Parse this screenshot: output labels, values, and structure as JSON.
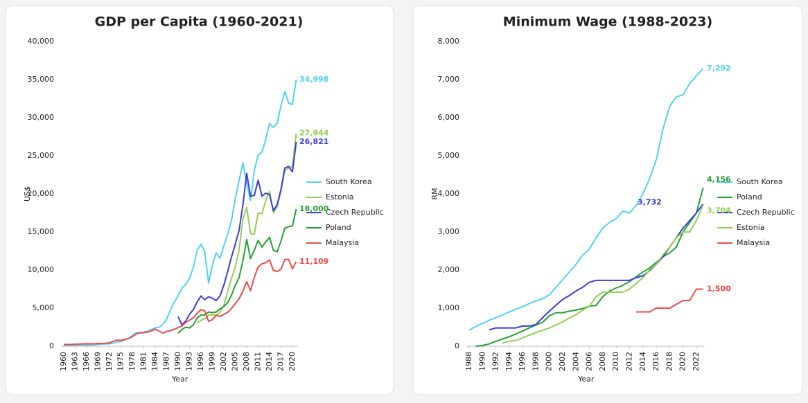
{
  "chart_data": [
    {
      "type": "line",
      "title": "GDP per Capita (1960-2021)",
      "x_label": "Year",
      "y_label": "US$",
      "x": [
        1960,
        1961,
        1962,
        1963,
        1964,
        1965,
        1966,
        1967,
        1968,
        1969,
        1970,
        1971,
        1972,
        1973,
        1974,
        1975,
        1976,
        1977,
        1978,
        1979,
        1980,
        1981,
        1982,
        1983,
        1984,
        1985,
        1986,
        1987,
        1988,
        1989,
        1990,
        1991,
        1992,
        1993,
        1994,
        1995,
        1996,
        1997,
        1998,
        1999,
        2000,
        2001,
        2002,
        2003,
        2004,
        2005,
        2006,
        2007,
        2008,
        2009,
        2010,
        2011,
        2012,
        2013,
        2014,
        2015,
        2016,
        2017,
        2018,
        2019,
        2020,
        2021
      ],
      "xlim": [
        1960,
        2021
      ],
      "xticks": [
        1960,
        1963,
        1966,
        1969,
        1972,
        1975,
        1978,
        1981,
        1984,
        1987,
        1990,
        1993,
        1996,
        1999,
        2002,
        2005,
        2008,
        2011,
        2014,
        2017,
        2020
      ],
      "ylim": [
        0,
        40000
      ],
      "yticks": [
        0,
        {
          "value": 5000,
          "label": "5,000"
        },
        {
          "value": 10000,
          "label": "10,000"
        },
        {
          "value": 15000,
          "label": "15,000"
        },
        {
          "value": 20000,
          "label": "20,000"
        },
        {
          "value": 25000,
          "label": "25,000"
        },
        {
          "value": 30000,
          "label": "30,000"
        },
        {
          "value": 35000,
          "label": "35,000"
        },
        {
          "value": 40000,
          "label": "40,000"
        }
      ],
      "grid": false,
      "series": [
        {
          "name": "South Korea",
          "color": "#4fd3f5",
          "end_label": "34,998",
          "values": [
            158,
            94,
            106,
            146,
            124,
            108,
            133,
            161,
            198,
            243,
            279,
            301,
            324,
            407,
            563,
            616,
            830,
            1052,
            1406,
            1783,
            1715,
            1883,
            1993,
            2199,
            2413,
            2482,
            2835,
            3555,
            4749,
            5817,
            6610,
            7637,
            8127,
            8885,
            10385,
            12565,
            13403,
            12398,
            8282,
            10672,
            12257,
            11561,
            13165,
            14673,
            16496,
            19403,
            21743,
            24086,
            21350,
            19144,
            23087,
            25096,
            25467,
            27182,
            29250,
            28737,
            29274,
            31601,
            33447,
            31902,
            31721,
            34998
          ]
        },
        {
          "name": "Estonia",
          "color": "#92d050",
          "end_label": "27,944",
          "values": [
            null,
            null,
            null,
            null,
            null,
            null,
            null,
            null,
            null,
            null,
            null,
            null,
            null,
            null,
            null,
            null,
            null,
            null,
            null,
            null,
            null,
            null,
            null,
            null,
            null,
            null,
            null,
            null,
            null,
            null,
            null,
            null,
            null,
            null,
            null,
            3100,
            3400,
            3600,
            4100,
            4100,
            4100,
            4500,
            5300,
            7200,
            8900,
            10400,
            12600,
            16700,
            18200,
            14800,
            14700,
            17500,
            17400,
            19100,
            20300,
            17500,
            18300,
            20400,
            23100,
            23400,
            23600,
            27944
          ]
        },
        {
          "name": "Czech Republic",
          "color": "#3a3ae0",
          "end_label": "26,821",
          "values": [
            null,
            null,
            null,
            null,
            null,
            null,
            null,
            null,
            null,
            null,
            null,
            null,
            null,
            null,
            null,
            null,
            null,
            null,
            null,
            null,
            null,
            null,
            null,
            null,
            null,
            null,
            null,
            null,
            null,
            null,
            3900,
            2800,
            3300,
            4200,
            4800,
            5800,
            6600,
            6100,
            6500,
            6300,
            6000,
            6600,
            8000,
            9800,
            11700,
            13400,
            15200,
            18500,
            22700,
            19700,
            19800,
            21800,
            19700,
            20100,
            19900,
            17800,
            18600,
            20600,
            23400,
            23600,
            22900,
            26821
          ]
        },
        {
          "name": "Poland",
          "color": "#22a030",
          "end_label": "18,000",
          "values": [
            null,
            null,
            null,
            null,
            null,
            null,
            null,
            null,
            null,
            null,
            null,
            null,
            null,
            null,
            null,
            null,
            null,
            null,
            null,
            null,
            null,
            null,
            null,
            null,
            null,
            null,
            null,
            null,
            null,
            null,
            1700,
            2200,
            2500,
            2400,
            2800,
            3700,
            4100,
            4100,
            4500,
            4400,
            4500,
            4900,
            5200,
            5700,
            6700,
            8000,
            9000,
            11200,
            14000,
            11500,
            12600,
            13900,
            13000,
            13700,
            14300,
            12600,
            12400,
            13800,
            15500,
            15700,
            15800,
            18000
          ]
        },
        {
          "name": "Malaysia",
          "color": "#f04848",
          "end_label": "11,109",
          "values": [
            235,
            225,
            234,
            274,
            283,
            310,
            318,
            318,
            322,
            347,
            357,
            384,
            442,
            656,
            799,
            764,
            885,
            1030,
            1250,
            1601,
            1775,
            1770,
            1852,
            2020,
            2234,
            2000,
            1728,
            1934,
            2054,
            2216,
            2441,
            2653,
            3113,
            3433,
            3728,
            4329,
            4798,
            4638,
            3263,
            3493,
            4044,
            3914,
            4165,
            4461,
            4952,
            5587,
            6210,
            7243,
            8475,
            7292,
            9041,
            10399,
            10817,
            10970,
            11319,
            9955,
            9818,
            10118,
            11380,
            11414,
            10161,
            11109
          ]
        }
      ]
    },
    {
      "type": "line",
      "title": "Minimum Wage (1988-2023)",
      "x_label": "Year",
      "y_label": "RM",
      "x": [
        1988,
        1989,
        1990,
        1991,
        1992,
        1993,
        1994,
        1995,
        1996,
        1997,
        1998,
        1999,
        2000,
        2001,
        2002,
        2003,
        2004,
        2005,
        2006,
        2007,
        2008,
        2009,
        2010,
        2011,
        2012,
        2013,
        2014,
        2015,
        2016,
        2017,
        2018,
        2019,
        2020,
        2021,
        2022,
        2023
      ],
      "xlim": [
        1988,
        2023
      ],
      "xticks": [
        1988,
        1990,
        1992,
        1994,
        1996,
        1998,
        2000,
        2002,
        2004,
        2006,
        2008,
        2010,
        2012,
        2014,
        2016,
        2018,
        2020,
        2022
      ],
      "ylim": [
        0,
        8000
      ],
      "yticks": [
        0,
        {
          "value": 1000,
          "label": "1,000"
        },
        {
          "value": 2000,
          "label": "2,000"
        },
        {
          "value": 3000,
          "label": "3,000"
        },
        {
          "value": 4000,
          "label": "4,000"
        },
        {
          "value": 5000,
          "label": "5,000"
        },
        {
          "value": 6000,
          "label": "6,000"
        },
        {
          "value": 7000,
          "label": "7,000"
        },
        {
          "value": 8000,
          "label": "8,000"
        }
      ],
      "grid": false,
      "series": [
        {
          "name": "South Korea",
          "color": "#4fd3f5",
          "end_label": "7,292",
          "values": [
            420,
            520,
            600,
            680,
            750,
            820,
            900,
            970,
            1040,
            1120,
            1190,
            1250,
            1350,
            1550,
            1750,
            1950,
            2150,
            2400,
            2550,
            2850,
            3100,
            3250,
            3350,
            3550,
            3500,
            3700,
            4000,
            4400,
            4900,
            5700,
            6300,
            6550,
            6600,
            6900,
            7100,
            7292
          ]
        },
        {
          "name": "Poland",
          "color": "#22a030",
          "end_label": "4,156",
          "values": [
            null,
            0,
            20,
            60,
            130,
            190,
            250,
            320,
            400,
            480,
            560,
            630,
            800,
            880,
            880,
            920,
            950,
            990,
            1050,
            1070,
            1300,
            1450,
            1530,
            1600,
            1700,
            1820,
            1950,
            2050,
            2200,
            2350,
            2450,
            2600,
            3000,
            3250,
            3500,
            4156
          ]
        },
        {
          "name": "Czech Republic",
          "color": "#3a3ae0",
          "end_label": "3,732",
          "values": [
            null,
            null,
            null,
            430,
            480,
            480,
            480,
            480,
            530,
            530,
            570,
            750,
            920,
            1080,
            1230,
            1330,
            1450,
            1550,
            1680,
            1730,
            1730,
            1730,
            1730,
            1730,
            1730,
            1800,
            1850,
            1980,
            2150,
            2350,
            2600,
            2850,
            3100,
            3300,
            3500,
            3732
          ]
        },
        {
          "name": "Estonia",
          "color": "#92d050",
          "end_label": "3,704",
          "values": [
            null,
            null,
            null,
            null,
            null,
            80,
            130,
            150,
            220,
            290,
            360,
            420,
            480,
            560,
            640,
            740,
            830,
            950,
            1050,
            1300,
            1420,
            1420,
            1420,
            1420,
            1500,
            1650,
            1800,
            2000,
            2150,
            2400,
            2600,
            2850,
            3000,
            3000,
            3300,
            3704
          ]
        },
        {
          "name": "Malaysia",
          "color": "#f04848",
          "end_label": "1,500",
          "values": [
            null,
            null,
            null,
            null,
            null,
            null,
            null,
            null,
            null,
            null,
            null,
            null,
            null,
            null,
            null,
            null,
            null,
            null,
            null,
            null,
            null,
            null,
            null,
            null,
            null,
            900,
            900,
            900,
            1000,
            1000,
            1000,
            1100,
            1200,
            1200,
            1500,
            1500
          ]
        }
      ]
    }
  ]
}
